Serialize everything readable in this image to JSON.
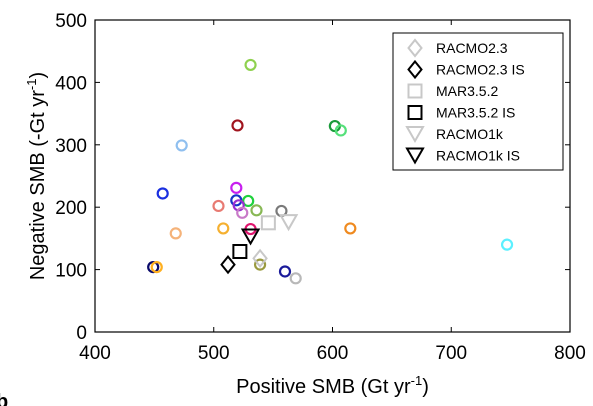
{
  "panel_label": "b",
  "chart_data": {
    "type": "scatter",
    "title": "",
    "xlabel": "Positive SMB (Gt yr",
    "xlabel_sup": "-1",
    "xlabel_end": ")",
    "ylabel": "Negative SMB (-Gt yr",
    "ylabel_sup": "-1",
    "ylabel_end": ")",
    "xlim": [
      400,
      800
    ],
    "ylim": [
      0,
      500
    ],
    "xticks": [
      400,
      500,
      600,
      700,
      800
    ],
    "yticks": [
      0,
      100,
      200,
      300,
      400,
      500
    ],
    "grid": false,
    "legend_position": "top-right",
    "circle_points": [
      {
        "x": 531,
        "y": 428,
        "color": "#8fd14f"
      },
      {
        "x": 520,
        "y": 331,
        "color": "#a0141e"
      },
      {
        "x": 602,
        "y": 330,
        "color": "#1a9a3a"
      },
      {
        "x": 607,
        "y": 323,
        "color": "#55e07a"
      },
      {
        "x": 473,
        "y": 299,
        "color": "#8fbfef"
      },
      {
        "x": 519,
        "y": 231,
        "color": "#c71fef"
      },
      {
        "x": 457,
        "y": 222,
        "color": "#1a2fe0"
      },
      {
        "x": 519,
        "y": 211,
        "color": "#1533c8"
      },
      {
        "x": 529,
        "y": 210,
        "color": "#1fd23c"
      },
      {
        "x": 521,
        "y": 203,
        "color": "#9a2fcf"
      },
      {
        "x": 504,
        "y": 202,
        "color": "#e87a72"
      },
      {
        "x": 536,
        "y": 195,
        "color": "#88b855"
      },
      {
        "x": 557,
        "y": 194,
        "color": "#7a7a7a"
      },
      {
        "x": 524,
        "y": 191,
        "color": "#c87ac8"
      },
      {
        "x": 508,
        "y": 166,
        "color": "#f5b030"
      },
      {
        "x": 615,
        "y": 166,
        "color": "#ef8a1f"
      },
      {
        "x": 531,
        "y": 165,
        "color": "#e0156e"
      },
      {
        "x": 468,
        "y": 158,
        "color": "#f5b37a"
      },
      {
        "x": 747,
        "y": 140,
        "color": "#5cf0ff"
      },
      {
        "x": 539,
        "y": 108,
        "color": "#9a9a3f"
      },
      {
        "x": 449,
        "y": 104,
        "color": "#0a0a6a"
      },
      {
        "x": 452,
        "y": 104,
        "color": "#ffb020"
      },
      {
        "x": 560,
        "y": 97,
        "color": "#1a1a9a"
      },
      {
        "x": 569,
        "y": 86,
        "color": "#b8b8b8"
      }
    ],
    "series": [
      {
        "name": "RACMO2.3",
        "marker": "diamond",
        "color": "#c8c8c8",
        "points": [
          {
            "x": 539,
            "y": 118
          }
        ]
      },
      {
        "name": "RACMO2.3 IS",
        "marker": "diamond",
        "color": "#000000",
        "points": [
          {
            "x": 512,
            "y": 108
          }
        ]
      },
      {
        "name": "MAR3.5.2",
        "marker": "square",
        "color": "#c8c8c8",
        "points": [
          {
            "x": 546,
            "y": 175
          }
        ]
      },
      {
        "name": "MAR3.5.2 IS",
        "marker": "square",
        "color": "#000000",
        "points": [
          {
            "x": 522,
            "y": 129
          }
        ]
      },
      {
        "name": "RACMO1k",
        "marker": "triangle",
        "color": "#c8c8c8",
        "points": [
          {
            "x": 563,
            "y": 176
          }
        ]
      },
      {
        "name": "RACMO1k IS",
        "marker": "triangle",
        "color": "#000000",
        "points": [
          {
            "x": 531,
            "y": 153
          }
        ]
      }
    ]
  }
}
